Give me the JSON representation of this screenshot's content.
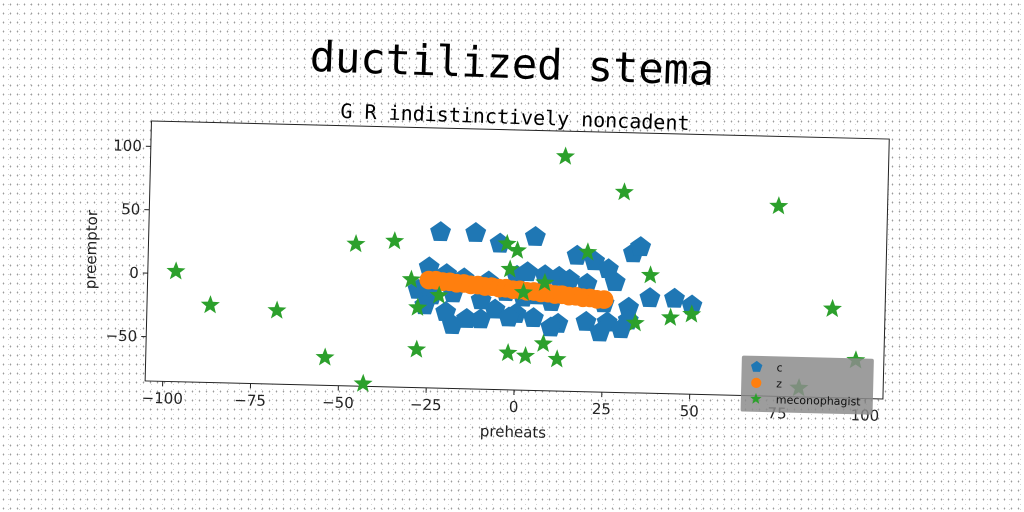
{
  "chart_data": {
    "type": "scatter",
    "title": "ductilized stema",
    "subtitle": "G R indistinctively noncadent",
    "xlabel": "preheats",
    "ylabel": "preemptor",
    "xlim": [
      -105,
      105
    ],
    "ylim": [
      -85,
      120
    ],
    "xticks": [
      -100,
      -75,
      -50,
      -25,
      0,
      25,
      50,
      75,
      100
    ],
    "yticks": [
      -50,
      0,
      50,
      100
    ],
    "grid": false,
    "legend_position": "lower-right",
    "series": [
      {
        "name": "c",
        "marker": "pentagon",
        "color": "#1f77b4",
        "points": [
          [
            -22,
            38
          ],
          [
            -12,
            38
          ],
          [
            -5,
            30
          ],
          [
            5,
            36
          ],
          [
            17,
            22
          ],
          [
            22,
            18
          ],
          [
            26,
            12
          ],
          [
            33,
            25
          ],
          [
            35,
            30
          ],
          [
            -25,
            10
          ],
          [
            -20,
            5
          ],
          [
            -15,
            2
          ],
          [
            -8,
            0
          ],
          [
            0,
            5
          ],
          [
            3,
            8
          ],
          [
            8,
            6
          ],
          [
            12,
            5
          ],
          [
            15,
            3
          ],
          [
            20,
            0
          ],
          [
            28,
            2
          ],
          [
            -28,
            -8
          ],
          [
            -24,
            -12
          ],
          [
            -18,
            -10
          ],
          [
            -10,
            -15
          ],
          [
            -3,
            -8
          ],
          [
            2,
            -12
          ],
          [
            6,
            -10
          ],
          [
            10,
            -15
          ],
          [
            18,
            -10
          ],
          [
            25,
            -15
          ],
          [
            32,
            -18
          ],
          [
            38,
            -10
          ],
          [
            45,
            -10
          ],
          [
            50,
            -15
          ],
          [
            -26,
            -20
          ],
          [
            -20,
            -25
          ],
          [
            -14,
            -30
          ],
          [
            -6,
            -22
          ],
          [
            0,
            -25
          ],
          [
            5,
            -28
          ],
          [
            12,
            -32
          ],
          [
            20,
            -30
          ],
          [
            26,
            -30
          ],
          [
            32,
            -28
          ],
          [
            -18,
            -35
          ],
          [
            -10,
            -30
          ],
          [
            -2,
            -28
          ],
          [
            10,
            -35
          ],
          [
            24,
            -38
          ],
          [
            30,
            -35
          ]
        ]
      },
      {
        "name": "z",
        "marker": "circle",
        "color": "#ff7f0e",
        "points": [
          [
            -25,
            0
          ],
          [
            -23,
            0
          ],
          [
            -21,
            -1
          ],
          [
            -19,
            -1
          ],
          [
            -17,
            -2
          ],
          [
            -15,
            -2
          ],
          [
            -13,
            -3
          ],
          [
            -11,
            -3
          ],
          [
            -9,
            -4
          ],
          [
            -7,
            -4
          ],
          [
            -5,
            -5
          ],
          [
            -3,
            -5
          ],
          [
            -1,
            -6
          ],
          [
            1,
            -6
          ],
          [
            3,
            -7
          ],
          [
            5,
            -7
          ],
          [
            7,
            -8
          ],
          [
            9,
            -8
          ],
          [
            11,
            -9
          ],
          [
            13,
            -9
          ],
          [
            15,
            -10
          ],
          [
            17,
            -10
          ],
          [
            19,
            -11
          ],
          [
            21,
            -11
          ],
          [
            23,
            -12
          ],
          [
            25,
            -12
          ]
        ]
      },
      {
        "name": "meconophagist",
        "marker": "star",
        "color": "#2ca02c",
        "points": [
          [
            13,
            100
          ],
          [
            30,
            73
          ],
          [
            74,
            65
          ],
          [
            -97,
            2
          ],
          [
            -87,
            -24
          ],
          [
            -68,
            -27
          ],
          [
            -54,
            -63
          ],
          [
            -43,
            -83
          ],
          [
            -46,
            27
          ],
          [
            -35,
            30
          ],
          [
            -30,
            0
          ],
          [
            -28,
            -22
          ],
          [
            -28,
            -55
          ],
          [
            -3,
            30
          ],
          [
            0,
            25
          ],
          [
            -2,
            10
          ],
          [
            2,
            -8
          ],
          [
            -2,
            -56
          ],
          [
            3,
            -58
          ],
          [
            12,
            -60
          ],
          [
            8,
            -48
          ],
          [
            8,
            0
          ],
          [
            20,
            25
          ],
          [
            38,
            8
          ],
          [
            44,
            -25
          ],
          [
            50,
            -22
          ],
          [
            34,
            -30
          ],
          [
            90,
            -15
          ],
          [
            97,
            -55
          ],
          [
            81,
            -78
          ],
          [
            -22,
            -12
          ]
        ]
      }
    ]
  }
}
